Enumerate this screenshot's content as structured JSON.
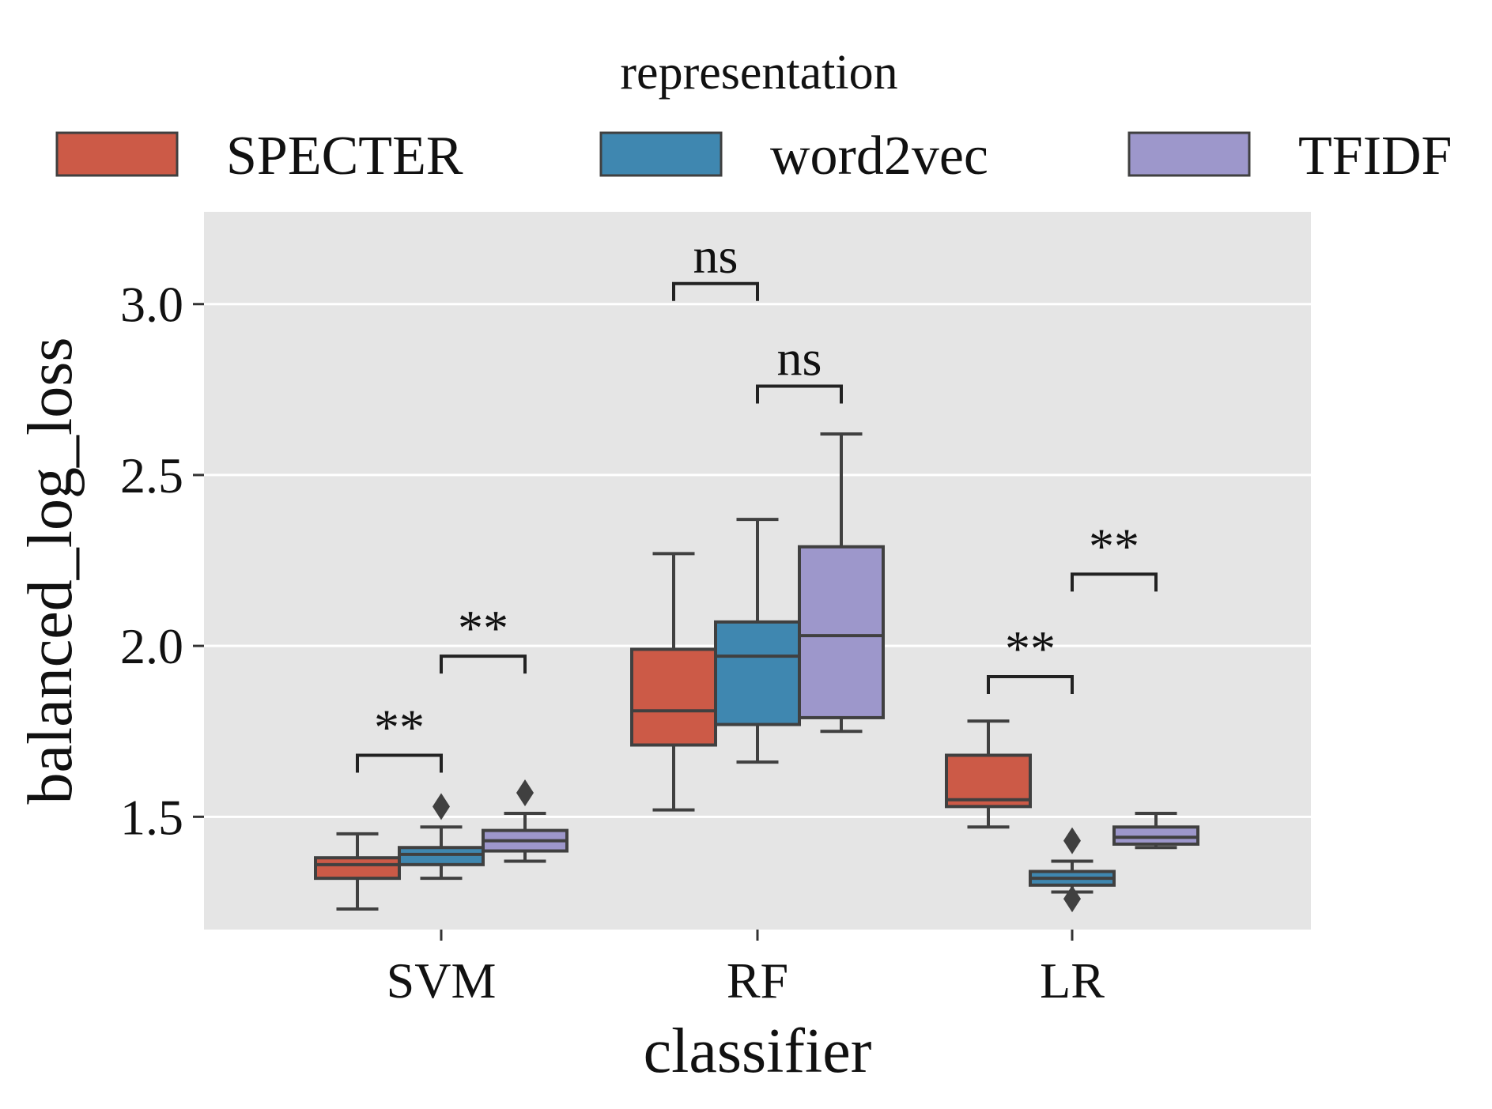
{
  "chart_data": {
    "type": "box",
    "xlabel": "classifier",
    "ylabel": "balanced_log_loss",
    "categories": [
      "SVM",
      "RF",
      "LR"
    ],
    "ylim": [
      1.17,
      3.27
    ],
    "yticks": [
      "1.5",
      "2.0",
      "2.5",
      "3.0"
    ],
    "legend": {
      "title": "representation",
      "placement": "top",
      "entries": [
        "SPECTER",
        "word2vec",
        "TFIDF"
      ]
    },
    "colors": {
      "SPECTER": "#cc5a47",
      "word2vec": "#3f87b0",
      "TFIDF": "#9d97cb",
      "background": "#e5e5e5",
      "grid": "#ffffff",
      "lines": "#404040"
    },
    "grid": true,
    "series": [
      {
        "name": "SPECTER",
        "boxes": [
          {
            "category": "SVM",
            "whislo": 1.23,
            "q1": 1.32,
            "median": 1.36,
            "q3": 1.38,
            "whishi": 1.45,
            "fliers": []
          },
          {
            "category": "RF",
            "whislo": 1.52,
            "q1": 1.71,
            "median": 1.81,
            "q3": 1.99,
            "whishi": 2.27,
            "fliers": []
          },
          {
            "category": "LR",
            "whislo": 1.47,
            "q1": 1.53,
            "median": 1.55,
            "q3": 1.68,
            "whishi": 1.78,
            "fliers": []
          }
        ]
      },
      {
        "name": "word2vec",
        "boxes": [
          {
            "category": "SVM",
            "whislo": 1.32,
            "q1": 1.36,
            "median": 1.39,
            "q3": 1.41,
            "whishi": 1.47,
            "fliers": [
              1.53
            ]
          },
          {
            "category": "RF",
            "whislo": 1.66,
            "q1": 1.77,
            "median": 1.97,
            "q3": 2.07,
            "whishi": 2.37,
            "fliers": []
          },
          {
            "category": "LR",
            "whislo": 1.28,
            "q1": 1.3,
            "median": 1.32,
            "q3": 1.34,
            "whishi": 1.37,
            "fliers": [
              1.43,
              1.26
            ]
          }
        ]
      },
      {
        "name": "TFIDF",
        "boxes": [
          {
            "category": "SVM",
            "whislo": 1.37,
            "q1": 1.4,
            "median": 1.43,
            "q3": 1.46,
            "whishi": 1.51,
            "fliers": [
              1.57
            ]
          },
          {
            "category": "RF",
            "whislo": 1.75,
            "q1": 1.79,
            "median": 2.03,
            "q3": 2.29,
            "whishi": 2.62,
            "fliers": []
          },
          {
            "category": "LR",
            "whislo": 1.41,
            "q1": 1.42,
            "median": 1.44,
            "q3": 1.47,
            "whishi": 1.51,
            "fliers": []
          }
        ]
      }
    ],
    "annotations": [
      {
        "category": "SVM",
        "from": "SPECTER",
        "to": "word2vec",
        "text": "**",
        "bracket_y": 1.68
      },
      {
        "category": "SVM",
        "from": "word2vec",
        "to": "TFIDF",
        "text": "**",
        "bracket_y": 1.97
      },
      {
        "category": "RF",
        "from": "SPECTER",
        "to": "word2vec",
        "text": "ns",
        "bracket_y": 3.06
      },
      {
        "category": "RF",
        "from": "word2vec",
        "to": "TFIDF",
        "text": "ns",
        "bracket_y": 2.76
      },
      {
        "category": "LR",
        "from": "SPECTER",
        "to": "word2vec",
        "text": "**",
        "bracket_y": 1.91
      },
      {
        "category": "LR",
        "from": "word2vec",
        "to": "TFIDF",
        "text": "**",
        "bracket_y": 2.21
      }
    ]
  }
}
